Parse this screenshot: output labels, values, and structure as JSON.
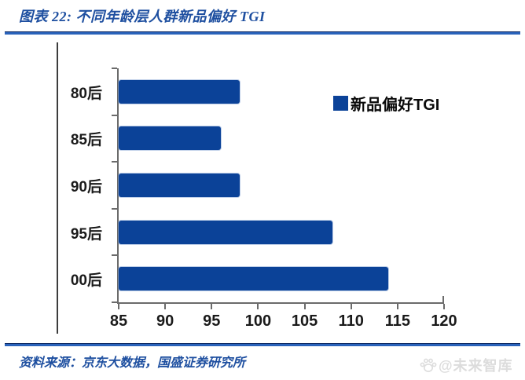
{
  "header": {
    "title": "图表 22:  不同年龄层人群新品偏好 TGI"
  },
  "footer": {
    "source": "资料来源：京东大数据，国盛证券研究所",
    "watermark": "@未来智库"
  },
  "colors": {
    "bar": "#0b4298",
    "accent_rule": "#2a63bb",
    "title_text": "#1e4fa0",
    "axis": "#6b6b6b",
    "watermark_gray": "#dcdcdc"
  },
  "chart_data": {
    "type": "bar",
    "orientation": "horizontal",
    "title": "不同年龄层人群新品偏好 TGI",
    "categories": [
      "80后",
      "85后",
      "90后",
      "95后",
      "00后"
    ],
    "series": [
      {
        "name": "新品偏好TGI",
        "values": [
          98,
          96,
          98,
          108,
          114
        ]
      }
    ],
    "xlim": [
      85,
      120
    ],
    "xticks": [
      85,
      90,
      95,
      100,
      105,
      110,
      115,
      120
    ],
    "legend": {
      "label": "新品偏好TGI",
      "position": "upper-right-inside"
    },
    "grid": false
  }
}
